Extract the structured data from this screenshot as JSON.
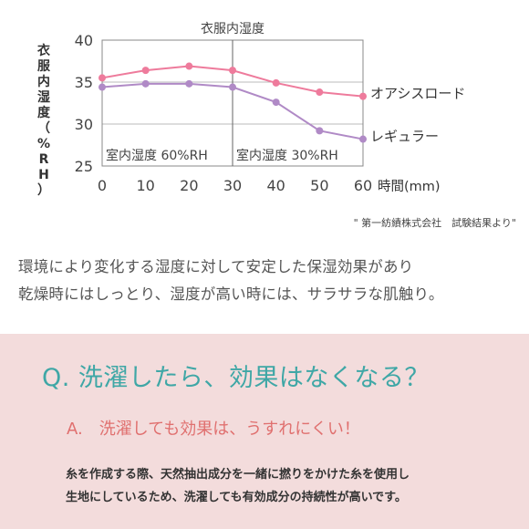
{
  "chart_data": {
    "type": "line",
    "title": "衣服内湿度",
    "ylabel": "衣服内湿度（%RH）",
    "xlabel": "時間(mm)",
    "x": [
      0,
      10,
      20,
      30,
      40,
      50,
      60
    ],
    "xlim": [
      0,
      60
    ],
    "ylim": [
      25,
      40
    ],
    "yticks": [
      25,
      30,
      35,
      40
    ],
    "grid": "horizontal",
    "series": [
      {
        "name": "オアシスロード",
        "values": [
          35.5,
          36.4,
          36.9,
          36.4,
          34.9,
          33.8,
          33.3
        ],
        "color": "#ee7b9c"
      },
      {
        "name": "レギュラー",
        "values": [
          34.4,
          34.8,
          34.8,
          34.4,
          32.6,
          29.2,
          28.2
        ],
        "color": "#b08ac6"
      }
    ],
    "annotations": [
      {
        "text": "室内湿度 60%RH",
        "x_range": [
          0,
          30
        ]
      },
      {
        "text": "室内湿度 30%RH",
        "x_range": [
          30,
          60
        ]
      }
    ],
    "divider_x": 30
  },
  "source_note": "\" 第一紡績株式会社　試験結果より\"",
  "description": {
    "line1": "環境により変化する湿度に対して安定した保湿効果があり",
    "line2": "乾燥時にはしっとり、湿度が高い時には、サラサラな肌触り。"
  },
  "qa": {
    "question": "Q. 洗濯したら、効果はなくなる？",
    "answer_heading": "A.　洗濯しても効果は、うすれにくい！",
    "answer_line1": "糸を作成する際、天然抽出成分を一緒に撚りをかけた糸を使用し",
    "answer_line2": "生地にしているため、洗濯しても有効成分の持続性が高いです。"
  },
  "colors": {
    "question": "#3fa7a6",
    "answer_heading": "#e0706f",
    "qa_background": "#f3dcdc"
  }
}
